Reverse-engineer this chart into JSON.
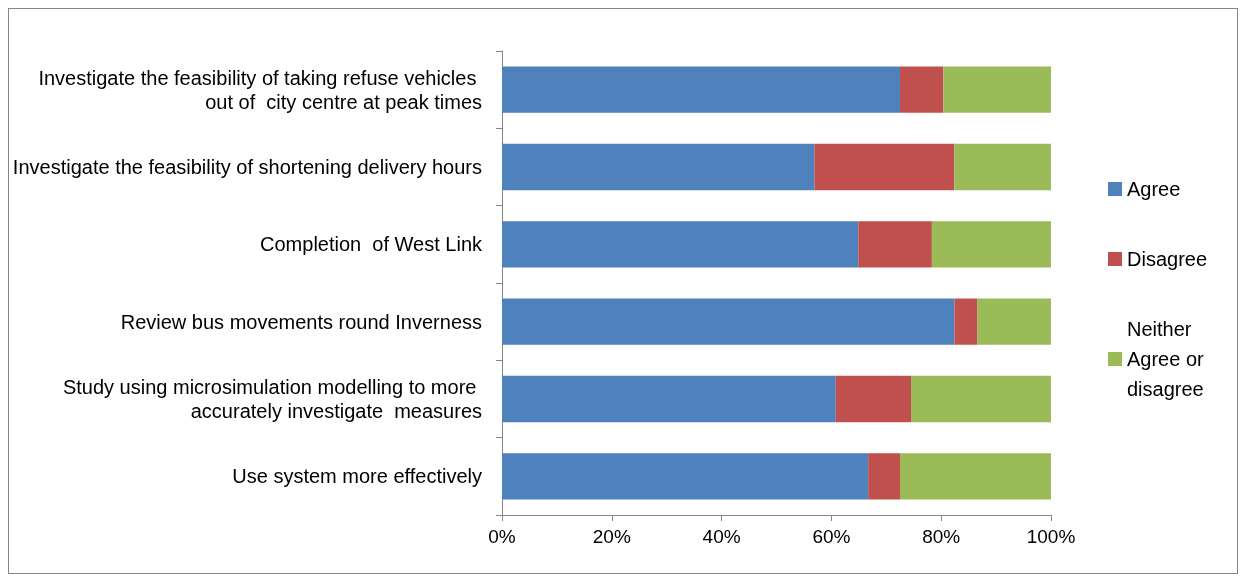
{
  "chart_data": {
    "type": "bar",
    "orientation": "horizontal",
    "stacked": true,
    "categories": [
      "Investigate the feasibility of taking refuse vehicles out of  city centre at peak times",
      "Investigate the feasibility of shortening delivery hours",
      "Completion  of West Link",
      "Review bus movements round Inverness",
      "Study using microsimulation modelling to more accurately investigate  measures",
      "Use system more effectively"
    ],
    "series": [
      {
        "name": "Agree",
        "color": "#4f81bd",
        "values": [
          72.5,
          56.9,
          64.9,
          82.4,
          60.8,
          66.7
        ]
      },
      {
        "name": "Disagree",
        "color": "#c0504d",
        "values": [
          7.9,
          25.5,
          13.4,
          4.2,
          13.7,
          5.8
        ]
      },
      {
        "name": "Neither Agree or disagree",
        "color": "#9bbb59",
        "values": [
          19.6,
          17.6,
          21.7,
          13.4,
          25.5,
          27.5
        ]
      }
    ],
    "xlim": [
      0,
      100
    ],
    "xticks": [
      {
        "value": 0,
        "label": "0%"
      },
      {
        "value": 20,
        "label": "20%"
      },
      {
        "value": 40,
        "label": "40%"
      },
      {
        "value": 60,
        "label": "60%"
      },
      {
        "value": 80,
        "label": "80%"
      },
      {
        "value": 100,
        "label": "100%"
      }
    ],
    "legend": "right",
    "grid": false
  }
}
